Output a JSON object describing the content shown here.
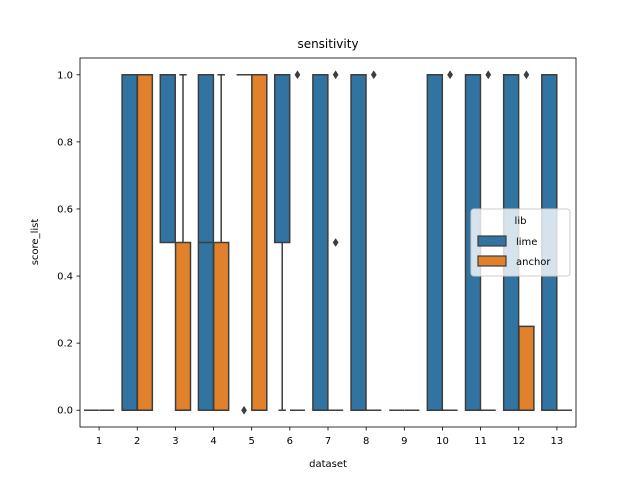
{
  "chart_data": {
    "type": "box",
    "title": "sensitivity",
    "xlabel": "dataset",
    "ylabel": "score_list",
    "categories": [
      "1",
      "2",
      "3",
      "4",
      "5",
      "6",
      "7",
      "8",
      "9",
      "10",
      "11",
      "12",
      "13"
    ],
    "ylim": [
      -0.05,
      1.05
    ],
    "yticks": [
      0.0,
      0.2,
      0.4,
      0.6,
      0.8,
      1.0
    ],
    "ytick_labels": [
      "0.0",
      "0.2",
      "0.4",
      "0.6",
      "0.8",
      "1.0"
    ],
    "legend": {
      "title": "lib",
      "placement": "center-right"
    },
    "grid": false,
    "series": [
      {
        "name": "lime",
        "color": "#3274a1",
        "boxes": [
          {
            "q1": 0,
            "median": 0,
            "q3": 0,
            "whislo": 0,
            "whishi": 0,
            "fliers": []
          },
          {
            "q1": 0,
            "median": 0,
            "q3": 1,
            "whislo": 0,
            "whishi": 1,
            "fliers": []
          },
          {
            "q1": 0.5,
            "median": 1,
            "q3": 1,
            "whislo": 0.5,
            "whishi": 1,
            "fliers": []
          },
          {
            "q1": 0,
            "median": 0.5,
            "q3": 1,
            "whislo": 0,
            "whishi": 1,
            "fliers": []
          },
          {
            "q1": 1,
            "median": 1,
            "q3": 1,
            "whislo": 1,
            "whishi": 1,
            "fliers": [
              0
            ]
          },
          {
            "q1": 0.5,
            "median": 1,
            "q3": 1,
            "whislo": 0,
            "whishi": 1,
            "fliers": []
          },
          {
            "q1": 0,
            "median": 0,
            "q3": 1,
            "whislo": 0,
            "whishi": 1,
            "fliers": []
          },
          {
            "q1": 0,
            "median": 0,
            "q3": 1,
            "whislo": 0,
            "whishi": 1,
            "fliers": []
          },
          {
            "q1": 0,
            "median": 0,
            "q3": 0,
            "whislo": 0,
            "whishi": 0,
            "fliers": []
          },
          {
            "q1": 0,
            "median": 0,
            "q3": 1,
            "whislo": 0,
            "whishi": 1,
            "fliers": []
          },
          {
            "q1": 0,
            "median": 0,
            "q3": 1,
            "whislo": 0,
            "whishi": 1,
            "fliers": []
          },
          {
            "q1": 0,
            "median": 0,
            "q3": 1,
            "whislo": 0,
            "whishi": 1,
            "fliers": []
          },
          {
            "q1": 0,
            "median": 0,
            "q3": 1,
            "whislo": 0,
            "whishi": 1,
            "fliers": []
          }
        ]
      },
      {
        "name": "anchor",
        "color": "#e1812c",
        "boxes": [
          {
            "q1": 0,
            "median": 0,
            "q3": 0,
            "whislo": 0,
            "whishi": 0,
            "fliers": []
          },
          {
            "q1": 0,
            "median": 0,
            "q3": 1,
            "whislo": 0,
            "whishi": 1,
            "fliers": []
          },
          {
            "q1": 0,
            "median": 0,
            "q3": 0.5,
            "whislo": 0,
            "whishi": 1,
            "fliers": []
          },
          {
            "q1": 0,
            "median": 0,
            "q3": 0.5,
            "whislo": 0,
            "whishi": 1,
            "fliers": []
          },
          {
            "q1": 0,
            "median": 0,
            "q3": 1,
            "whislo": 0,
            "whishi": 1,
            "fliers": []
          },
          {
            "q1": 0,
            "median": 0,
            "q3": 0,
            "whislo": 0,
            "whishi": 0,
            "fliers": [
              1
            ]
          },
          {
            "q1": 0,
            "median": 0,
            "q3": 0,
            "whislo": 0,
            "whishi": 0,
            "fliers": [
              1,
              0.5
            ]
          },
          {
            "q1": 0,
            "median": 0,
            "q3": 0,
            "whislo": 0,
            "whishi": 0,
            "fliers": [
              1
            ]
          },
          {
            "q1": 0,
            "median": 0,
            "q3": 0,
            "whislo": 0,
            "whishi": 0,
            "fliers": []
          },
          {
            "q1": 0,
            "median": 0,
            "q3": 0,
            "whislo": 0,
            "whishi": 0,
            "fliers": [
              1
            ]
          },
          {
            "q1": 0,
            "median": 0,
            "q3": 0,
            "whislo": 0,
            "whishi": 0,
            "fliers": [
              1
            ]
          },
          {
            "q1": 0,
            "median": 0,
            "q3": 0.25,
            "whislo": 0,
            "whishi": 0.25,
            "fliers": [
              1
            ]
          },
          {
            "q1": 0,
            "median": 0,
            "q3": 0,
            "whislo": 0,
            "whishi": 0,
            "fliers": []
          }
        ]
      }
    ]
  }
}
